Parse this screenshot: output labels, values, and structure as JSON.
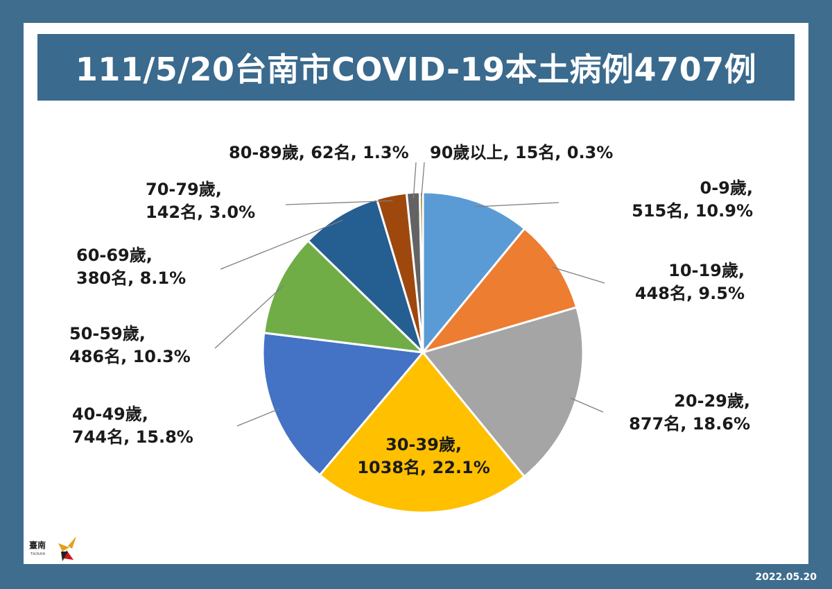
{
  "title": "111/5/20台南市COVID-19本土病例4707例",
  "date": "2022.05.20",
  "logo": {
    "text": "臺南",
    "subtext": "TAINAN"
  },
  "colors": {
    "background": "#3f6d8e",
    "title_bar": "#3a6a8d"
  },
  "chart_data": {
    "type": "pie",
    "title": "111/5/20台南市COVID-19本土病例4707例",
    "total": 4707,
    "slices": [
      {
        "category": "0-9歲",
        "count": 515,
        "percent": 10.9,
        "label_line1": "0-9歲,",
        "label_line2": "515名, 10.9%",
        "color": "#5b9bd5"
      },
      {
        "category": "10-19歲",
        "count": 448,
        "percent": 9.5,
        "label_line1": "10-19歲,",
        "label_line2": "448名, 9.5%",
        "color": "#ed7d31"
      },
      {
        "category": "20-29歲",
        "count": 877,
        "percent": 18.6,
        "label_line1": "20-29歲,",
        "label_line2": "877名, 18.6%",
        "color": "#a5a5a5"
      },
      {
        "category": "30-39歲",
        "count": 1038,
        "percent": 22.1,
        "label_line1": "30-39歲,",
        "label_line2": "1038名, 22.1%",
        "color": "#ffc000"
      },
      {
        "category": "40-49歲",
        "count": 744,
        "percent": 15.8,
        "label_line1": "40-49歲,",
        "label_line2": "744名, 15.8%",
        "color": "#4472c4"
      },
      {
        "category": "50-59歲",
        "count": 486,
        "percent": 10.3,
        "label_line1": "50-59歲,",
        "label_line2": "486名, 10.3%",
        "color": "#70ad47"
      },
      {
        "category": "60-69歲",
        "count": 380,
        "percent": 8.1,
        "label_line1": "60-69歲,",
        "label_line2": "380名, 8.1%",
        "color": "#255e91"
      },
      {
        "category": "70-79歲",
        "count": 142,
        "percent": 3.0,
        "label_line1": "70-79歲,",
        "label_line2": "142名, 3.0%",
        "color": "#9e480e"
      },
      {
        "category": "80-89歲",
        "count": 62,
        "percent": 1.3,
        "label_line1": "80-89歲, 62名, 1.3%",
        "label_line2": "",
        "color": "#636363"
      },
      {
        "category": "90歲以上",
        "count": 15,
        "percent": 0.3,
        "label_line1": "90歲以上, 15名, 0.3%",
        "label_line2": "",
        "color": "#997300"
      }
    ]
  }
}
